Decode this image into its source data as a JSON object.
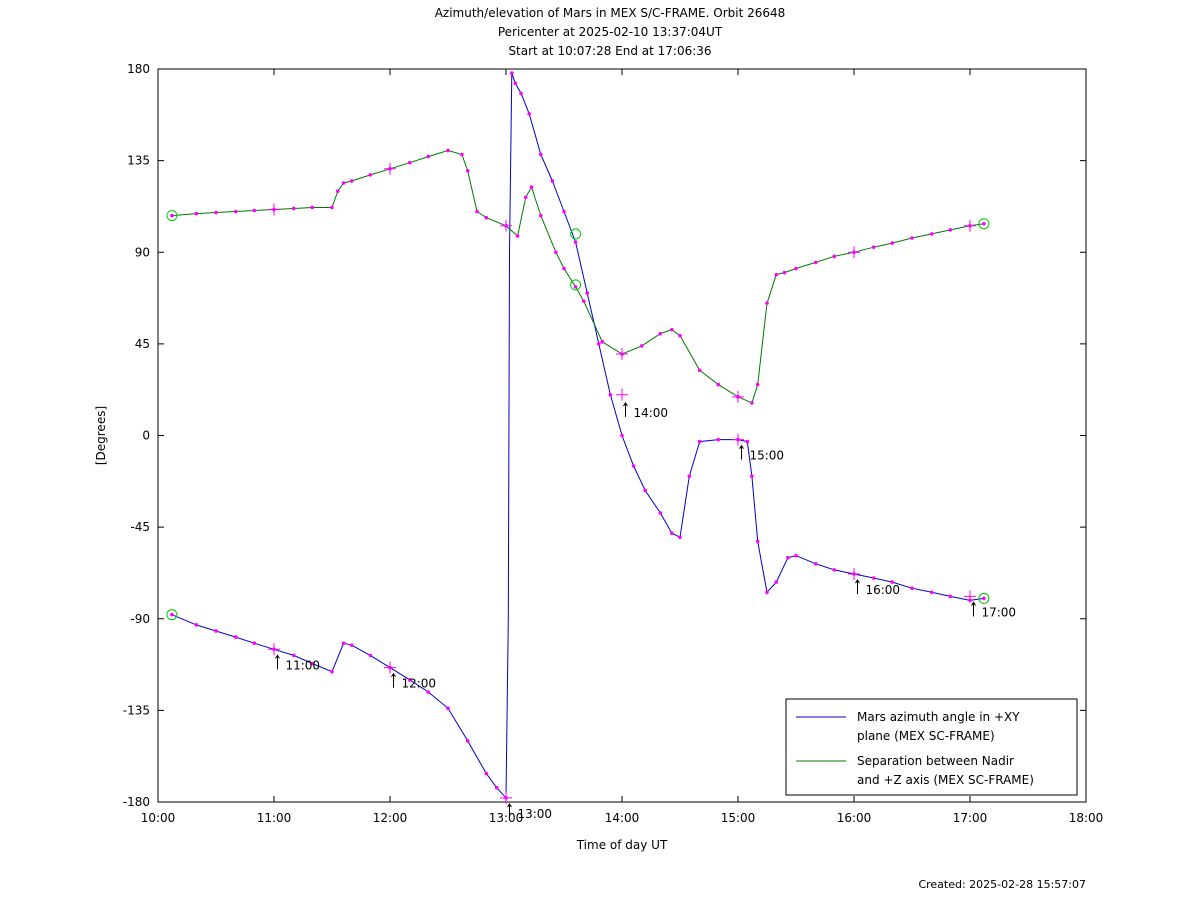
{
  "chart_data": {
    "type": "line",
    "title": [
      "Azimuth/elevation of Mars in MEX S/C-FRAME.  Orbit 26648",
      "Pericenter at 2025-02-10 13:37:04UT",
      "Start at 10:07:28 End at 17:06:36"
    ],
    "xlabel": "Time of day UT",
    "ylabel": "[Degrees]",
    "xlim": [
      10.0,
      18.0
    ],
    "ylim": [
      -180,
      180
    ],
    "x_ticks": [
      "10:00",
      "11:00",
      "12:00",
      "13:00",
      "14:00",
      "15:00",
      "16:00",
      "17:00",
      "18:00"
    ],
    "y_ticks": [
      "180",
      "135",
      "90",
      "45",
      "0",
      "-45",
      "-90",
      "-135",
      "-180"
    ],
    "grid": false,
    "legend_position": "bottom-right",
    "colors": {
      "azimuth": "#0000cc",
      "separation": "#007700",
      "markers": "#ff00ff",
      "endpoints": "#00cc00"
    },
    "series": [
      {
        "name": "Mars azimuth angle in +XY plane (MEX SC-FRAME)",
        "legend": [
          "Mars azimuth angle in +XY",
          "plane (MEX SC-FRAME)"
        ],
        "color": "#0000cc",
        "x": [
          10.12,
          10.33,
          10.5,
          10.67,
          10.83,
          11.0,
          11.17,
          11.33,
          11.5,
          11.6,
          11.67,
          11.83,
          12.0,
          12.17,
          12.33,
          12.5,
          12.67,
          12.83,
          12.92,
          13.0,
          13.02,
          13.03,
          13.05,
          13.08,
          13.13,
          13.2,
          13.3,
          13.4,
          13.5,
          13.6,
          13.7,
          13.8,
          13.9,
          14.0,
          14.1,
          14.2,
          14.33,
          14.43,
          14.5,
          14.58,
          14.67,
          14.83,
          15.0,
          15.08,
          15.12,
          15.17,
          15.25,
          15.33,
          15.43,
          15.5,
          15.67,
          15.83,
          16.0,
          16.17,
          16.33,
          16.5,
          16.67,
          16.83,
          17.0,
          17.12
        ],
        "y": [
          -88,
          -93,
          -96,
          -99,
          -102,
          -105,
          -108,
          -112,
          -116,
          -102,
          -103,
          -108,
          -114,
          -120,
          -126,
          -134,
          -150,
          -166,
          -173,
          -178,
          -90,
          90,
          178,
          173,
          168,
          158,
          138,
          125,
          110,
          95,
          70,
          45,
          20,
          0,
          -15,
          -27,
          -38,
          -48,
          -50,
          -20,
          -3,
          -2,
          -2,
          -3,
          -20,
          -52,
          -77,
          -72,
          -60,
          -59,
          -63,
          -66,
          -68,
          -70,
          -72,
          -75,
          -77,
          -79,
          -81,
          -80
        ]
      },
      {
        "name": "Separation between Nadir and +Z axis (MEX SC-FRAME)",
        "legend": [
          "Separation between Nadir",
          "and +Z axis (MEX SC-FRAME)"
        ],
        "color": "#007700",
        "x": [
          10.12,
          10.33,
          10.5,
          10.67,
          10.83,
          11.0,
          11.17,
          11.33,
          11.5,
          11.55,
          11.6,
          11.67,
          11.83,
          12.0,
          12.17,
          12.33,
          12.5,
          12.62,
          12.67,
          12.75,
          12.83,
          13.0,
          13.1,
          13.17,
          13.22,
          13.3,
          13.43,
          13.5,
          13.6,
          13.67,
          13.83,
          14.0,
          14.17,
          14.33,
          14.43,
          14.5,
          14.67,
          14.83,
          15.0,
          15.12,
          15.17,
          15.25,
          15.33,
          15.4,
          15.5,
          15.67,
          15.83,
          16.0,
          16.17,
          16.33,
          16.5,
          16.67,
          16.83,
          17.0,
          17.12
        ],
        "y": [
          108,
          109,
          109.5,
          110,
          110.5,
          111,
          111.5,
          112,
          112,
          120,
          124,
          125,
          128,
          131,
          134,
          137,
          140,
          138,
          130,
          110,
          107,
          103,
          98,
          117,
          122,
          108,
          90,
          82,
          73,
          66,
          46,
          40,
          44,
          50,
          52,
          49,
          32,
          25,
          19,
          16,
          25,
          65,
          79,
          80,
          82,
          85,
          88,
          90,
          92.5,
          94.5,
          97,
          99,
          101,
          103,
          104
        ]
      }
    ],
    "annotations": [
      "14:00",
      "15:00",
      "16:00",
      "17:00",
      "11:00",
      "12:00",
      "13:00"
    ],
    "created": "Created: 2025-02-28 15:57:07"
  }
}
